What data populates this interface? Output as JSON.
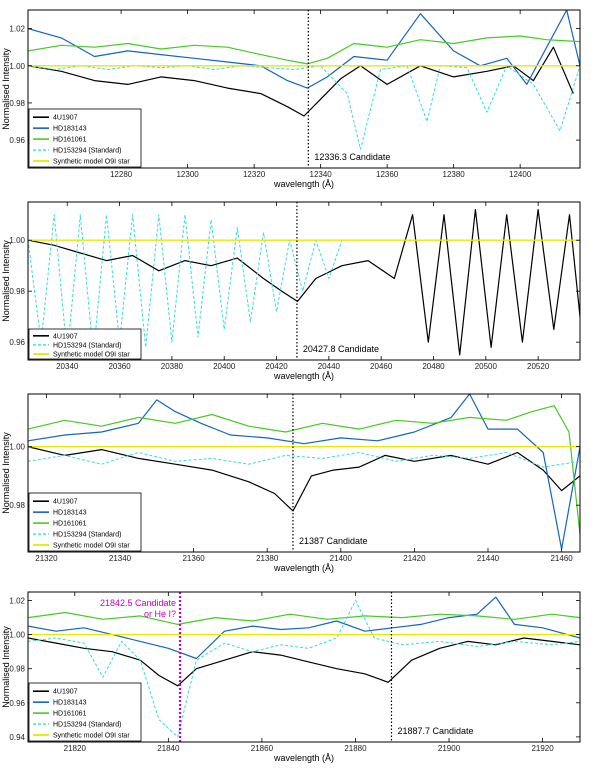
{
  "chart_data": [
    {
      "type": "line",
      "xlabel": "wavelength (Å)",
      "ylabel": "Normalised Intensity",
      "xlim": [
        12252,
        12418
      ],
      "ylim": [
        0.945,
        1.03
      ],
      "xticks": [
        "12280",
        "12300",
        "12320",
        "12340",
        "12360",
        "12380",
        "12400"
      ],
      "xtick_values": [
        12280,
        12300,
        12320,
        12340,
        12360,
        12380,
        12400
      ],
      "yticks": [
        "0.96",
        "0.98",
        "1.00",
        "1.02"
      ],
      "ytick_values": [
        0.96,
        0.98,
        1.0,
        1.02
      ],
      "marker": {
        "x": 12336.3,
        "label": "12336.3 Candidate",
        "color": "#000000"
      },
      "series": [
        {
          "name": "4U1907",
          "color": "#000000",
          "dash": false,
          "width": 1.2,
          "x": [
            12252,
            12262,
            12272,
            12282,
            12292,
            12302,
            12312,
            12322,
            12330,
            12335,
            12340,
            12346,
            12352,
            12360,
            12370,
            12380,
            12390,
            12398,
            12404,
            12410,
            12416
          ],
          "y": [
            1.0,
            0.997,
            0.992,
            0.99,
            0.994,
            0.992,
            0.988,
            0.985,
            0.978,
            0.973,
            0.982,
            0.993,
            1.0,
            0.99,
            1.0,
            0.994,
            0.997,
            1.0,
            0.992,
            1.01,
            0.985
          ]
        },
        {
          "name": "HD183143",
          "color": "#1565c0",
          "dash": false,
          "width": 1.2,
          "x": [
            12252,
            12262,
            12272,
            12282,
            12292,
            12302,
            12312,
            12322,
            12330,
            12336,
            12342,
            12350,
            12360,
            12370,
            12380,
            12388,
            12396,
            12402,
            12408,
            12414,
            12418
          ],
          "y": [
            1.02,
            1.015,
            1.005,
            1.008,
            1.006,
            1.004,
            1.002,
            1.0,
            0.992,
            0.988,
            0.994,
            1.005,
            1.003,
            1.028,
            1.008,
            1.0,
            1.004,
            0.99,
            1.01,
            1.03,
            1.0
          ]
        },
        {
          "name": "HD161061",
          "color": "#44cc22",
          "dash": false,
          "width": 1.2,
          "x": [
            12252,
            12262,
            12272,
            12282,
            12292,
            12302,
            12312,
            12322,
            12330,
            12336,
            12342,
            12350,
            12360,
            12370,
            12380,
            12390,
            12400,
            12408,
            12418
          ],
          "y": [
            1.008,
            1.011,
            1.01,
            1.012,
            1.009,
            1.011,
            1.01,
            1.006,
            1.003,
            1.001,
            1.004,
            1.012,
            1.01,
            1.014,
            1.012,
            1.015,
            1.016,
            1.014,
            1.013
          ]
        },
        {
          "name": "HD153294 (Standard)",
          "color": "#33dddd",
          "dash": true,
          "width": 1.0,
          "x": [
            12252,
            12260,
            12268,
            12276,
            12284,
            12292,
            12300,
            12308,
            12316,
            12324,
            12332,
            12340,
            12348,
            12352,
            12358,
            12366,
            12372,
            12376,
            12384,
            12390,
            12396,
            12404,
            12412,
            12418
          ],
          "y": [
            1.0,
            0.998,
            1.0,
            0.998,
            1.0,
            0.999,
            1.0,
            0.998,
            1.0,
            0.999,
            0.998,
            1.0,
            0.985,
            0.955,
            0.998,
            1.0,
            0.97,
            1.0,
            0.999,
            0.975,
            1.0,
            0.99,
            0.965,
            1.0
          ]
        },
        {
          "name": "Synthetic model O9I star",
          "color": "#e8e800",
          "dash": false,
          "width": 1.4,
          "x": [
            12252,
            12418
          ],
          "y": [
            1.0,
            1.0
          ]
        }
      ]
    },
    {
      "type": "line",
      "xlabel": "wavelength (Å)",
      "ylabel": "Normalised Intensity",
      "xlim": [
        20325,
        20536
      ],
      "ylim": [
        0.953,
        1.015
      ],
      "xticks": [
        "20340",
        "20360",
        "20380",
        "20400",
        "20420",
        "20440",
        "20460",
        "20480",
        "20500",
        "20520"
      ],
      "xtick_values": [
        20340,
        20360,
        20380,
        20400,
        20420,
        20440,
        20460,
        20480,
        20500,
        20520
      ],
      "yticks": [
        "0.96",
        "0.98",
        "1.00"
      ],
      "ytick_values": [
        0.96,
        0.98,
        1.0
      ],
      "marker": {
        "x": 20427.8,
        "label": "20427.8 Candidate",
        "color": "#000000"
      },
      "series": [
        {
          "name": "4U1907",
          "color": "#000000",
          "dash": false,
          "width": 1.2,
          "x": [
            20325,
            20335,
            20345,
            20355,
            20365,
            20375,
            20385,
            20395,
            20405,
            20415,
            20422,
            20428,
            20435,
            20445,
            20455,
            20465,
            20472,
            20478,
            20484,
            20490,
            20496,
            20502,
            20508,
            20514,
            20520,
            20526,
            20532,
            20536
          ],
          "y": [
            1.0,
            0.998,
            0.995,
            0.992,
            0.994,
            0.988,
            0.992,
            0.99,
            0.993,
            0.985,
            0.98,
            0.976,
            0.985,
            0.99,
            0.992,
            0.985,
            1.01,
            0.96,
            1.01,
            0.955,
            1.012,
            0.958,
            1.01,
            0.96,
            1.012,
            0.965,
            1.01,
            0.97
          ]
        },
        {
          "name": "HD153294 (Standard)",
          "color": "#33dddd",
          "dash": true,
          "width": 1.0,
          "x": [
            20325,
            20330,
            20335,
            20340,
            20345,
            20350,
            20355,
            20360,
            20365,
            20370,
            20375,
            20380,
            20385,
            20390,
            20395,
            20400,
            20405,
            20410,
            20415,
            20420,
            20425,
            20430,
            20435,
            20440,
            20445
          ],
          "y": [
            1.0,
            0.96,
            1.01,
            0.955,
            1.01,
            0.955,
            1.01,
            0.96,
            1.01,
            0.958,
            1.01,
            0.96,
            1.01,
            0.962,
            1.008,
            0.965,
            1.005,
            0.968,
            1.003,
            0.972,
            1.0,
            0.98,
            1.0,
            0.985,
            1.0
          ]
        },
        {
          "name": "Synthetic model O9I star",
          "color": "#e8e800",
          "dash": false,
          "width": 1.4,
          "x": [
            20325,
            20536
          ],
          "y": [
            1.0,
            1.0
          ]
        }
      ]
    },
    {
      "type": "line",
      "xlabel": "wavelength (Å)",
      "ylabel": "Normalised Intensity",
      "xlim": [
        21315,
        21465
      ],
      "ylim": [
        0.964,
        1.018
      ],
      "xticks": [
        "21320",
        "21340",
        "21360",
        "21380",
        "21400",
        "21420",
        "21440",
        "21460"
      ],
      "xtick_values": [
        21320,
        21340,
        21360,
        21380,
        21400,
        21420,
        21440,
        21460
      ],
      "yticks": [
        "0.98",
        "1.00"
      ],
      "ytick_values": [
        0.98,
        1.0
      ],
      "marker": {
        "x": 21387,
        "label": "21387 Candidate",
        "color": "#000000"
      },
      "series": [
        {
          "name": "4U1907",
          "color": "#000000",
          "dash": false,
          "width": 1.2,
          "x": [
            21315,
            21325,
            21335,
            21345,
            21355,
            21365,
            21375,
            21382,
            21387,
            21392,
            21398,
            21405,
            21412,
            21420,
            21430,
            21440,
            21448,
            21455,
            21460,
            21465
          ],
          "y": [
            1.0,
            0.997,
            0.999,
            0.996,
            0.994,
            0.992,
            0.988,
            0.984,
            0.978,
            0.99,
            0.992,
            0.993,
            0.997,
            0.995,
            0.997,
            0.994,
            0.998,
            0.992,
            0.985,
            0.99
          ]
        },
        {
          "name": "HD183143",
          "color": "#1565c0",
          "dash": false,
          "width": 1.2,
          "x": [
            21315,
            21325,
            21335,
            21345,
            21350,
            21355,
            21362,
            21370,
            21380,
            21390,
            21400,
            21410,
            21420,
            21430,
            21435,
            21440,
            21448,
            21455,
            21460,
            21465
          ],
          "y": [
            1.002,
            1.004,
            1.005,
            1.008,
            1.016,
            1.012,
            1.008,
            1.004,
            1.003,
            1.001,
            1.003,
            1.002,
            1.005,
            1.01,
            1.018,
            1.006,
            1.006,
            0.998,
            0.965,
            1.0
          ]
        },
        {
          "name": "HD161061",
          "color": "#44cc22",
          "dash": false,
          "width": 1.2,
          "x": [
            21315,
            21325,
            21335,
            21345,
            21355,
            21365,
            21375,
            21385,
            21395,
            21405,
            21415,
            21425,
            21435,
            21445,
            21452,
            21458,
            21462,
            21465
          ],
          "y": [
            1.006,
            1.009,
            1.007,
            1.01,
            1.008,
            1.011,
            1.007,
            1.005,
            1.008,
            1.006,
            1.009,
            1.008,
            1.01,
            1.009,
            1.012,
            1.014,
            1.005,
            0.97
          ]
        },
        {
          "name": "HD153294 (Standard)",
          "color": "#33dddd",
          "dash": true,
          "width": 1.0,
          "x": [
            21315,
            21325,
            21335,
            21345,
            21355,
            21365,
            21375,
            21385,
            21395,
            21405,
            21415,
            21425,
            21435,
            21445,
            21455,
            21465
          ],
          "y": [
            0.995,
            0.997,
            0.994,
            0.998,
            0.995,
            0.996,
            0.994,
            0.997,
            0.996,
            0.998,
            0.995,
            0.997,
            0.996,
            0.998,
            0.993,
            0.995
          ]
        },
        {
          "name": "Synthetic model O9I star",
          "color": "#e8e800",
          "dash": false,
          "width": 1.4,
          "x": [
            21315,
            21465
          ],
          "y": [
            1.0,
            1.0
          ]
        }
      ]
    },
    {
      "type": "line",
      "xlabel": "wavelength (Å)",
      "ylabel": "Normalised Intensity",
      "xlim": [
        21810,
        21928
      ],
      "ylim": [
        0.937,
        1.025
      ],
      "xticks": [
        "21820",
        "21840",
        "21860",
        "21880",
        "21900",
        "21920"
      ],
      "xtick_values": [
        21820,
        21840,
        21860,
        21880,
        21900,
        21920
      ],
      "yticks": [
        "0.94",
        "0.96",
        "0.98",
        "1.00",
        "1.02"
      ],
      "ytick_values": [
        0.94,
        0.96,
        0.98,
        1.0,
        1.02
      ],
      "marker": {
        "x": 21887.7,
        "label": "21887.7 Candidate",
        "color": "#000000"
      },
      "marker2": {
        "x": 21842.5,
        "label1": "21842.5 Candidate",
        "label2": "or He I?",
        "color": "#cc00cc"
      },
      "series": [
        {
          "name": "4U1907",
          "color": "#000000",
          "dash": false,
          "width": 1.2,
          "x": [
            21810,
            21816,
            21822,
            21828,
            21834,
            21838,
            21842,
            21846,
            21852,
            21858,
            21864,
            21870,
            21876,
            21882,
            21887,
            21892,
            21898,
            21904,
            21910,
            21916,
            21922,
            21928
          ],
          "y": [
            0.998,
            0.995,
            0.992,
            0.99,
            0.985,
            0.976,
            0.97,
            0.98,
            0.985,
            0.99,
            0.988,
            0.984,
            0.98,
            0.977,
            0.972,
            0.985,
            0.992,
            0.996,
            0.994,
            0.998,
            0.996,
            0.994
          ]
        },
        {
          "name": "HD183143",
          "color": "#1565c0",
          "dash": false,
          "width": 1.2,
          "x": [
            21810,
            21816,
            21822,
            21828,
            21834,
            21840,
            21846,
            21852,
            21858,
            21864,
            21870,
            21876,
            21882,
            21888,
            21894,
            21900,
            21906,
            21910,
            21914,
            21920,
            21928
          ],
          "y": [
            1.005,
            1.002,
            1.004,
            1.0,
            0.996,
            0.992,
            0.986,
            1.002,
            1.005,
            1.003,
            1.004,
            1.008,
            1.002,
            1.004,
            1.006,
            1.01,
            1.012,
            1.022,
            1.006,
            1.004,
            0.998
          ]
        },
        {
          "name": "HD161061",
          "color": "#44cc22",
          "dash": false,
          "width": 1.2,
          "x": [
            21810,
            21818,
            21826,
            21834,
            21842,
            21850,
            21858,
            21866,
            21874,
            21882,
            21890,
            21898,
            21906,
            21914,
            21922,
            21928
          ],
          "y": [
            1.01,
            1.013,
            1.009,
            1.011,
            1.006,
            1.01,
            1.008,
            1.012,
            1.009,
            1.011,
            1.01,
            1.012,
            1.011,
            1.009,
            1.012,
            1.01
          ]
        },
        {
          "name": "HD153294 (Standard)",
          "color": "#33dddd",
          "dash": true,
          "width": 1.0,
          "x": [
            21810,
            21816,
            21822,
            21826,
            21830,
            21834,
            21838,
            21842,
            21846,
            21852,
            21858,
            21864,
            21870,
            21876,
            21880,
            21884,
            21890,
            21898,
            21906,
            21914,
            21922,
            21928
          ],
          "y": [
            0.996,
            0.998,
            0.995,
            0.975,
            0.996,
            0.985,
            0.95,
            0.94,
            0.985,
            0.995,
            0.99,
            0.994,
            0.992,
            0.998,
            1.02,
            0.998,
            0.994,
            0.996,
            0.993,
            0.996,
            0.994,
            0.996
          ]
        },
        {
          "name": "Synthetic model O9I star",
          "color": "#e8e800",
          "dash": false,
          "width": 1.4,
          "x": [
            21810,
            21928
          ],
          "y": [
            1.0,
            1.0
          ]
        }
      ]
    }
  ]
}
